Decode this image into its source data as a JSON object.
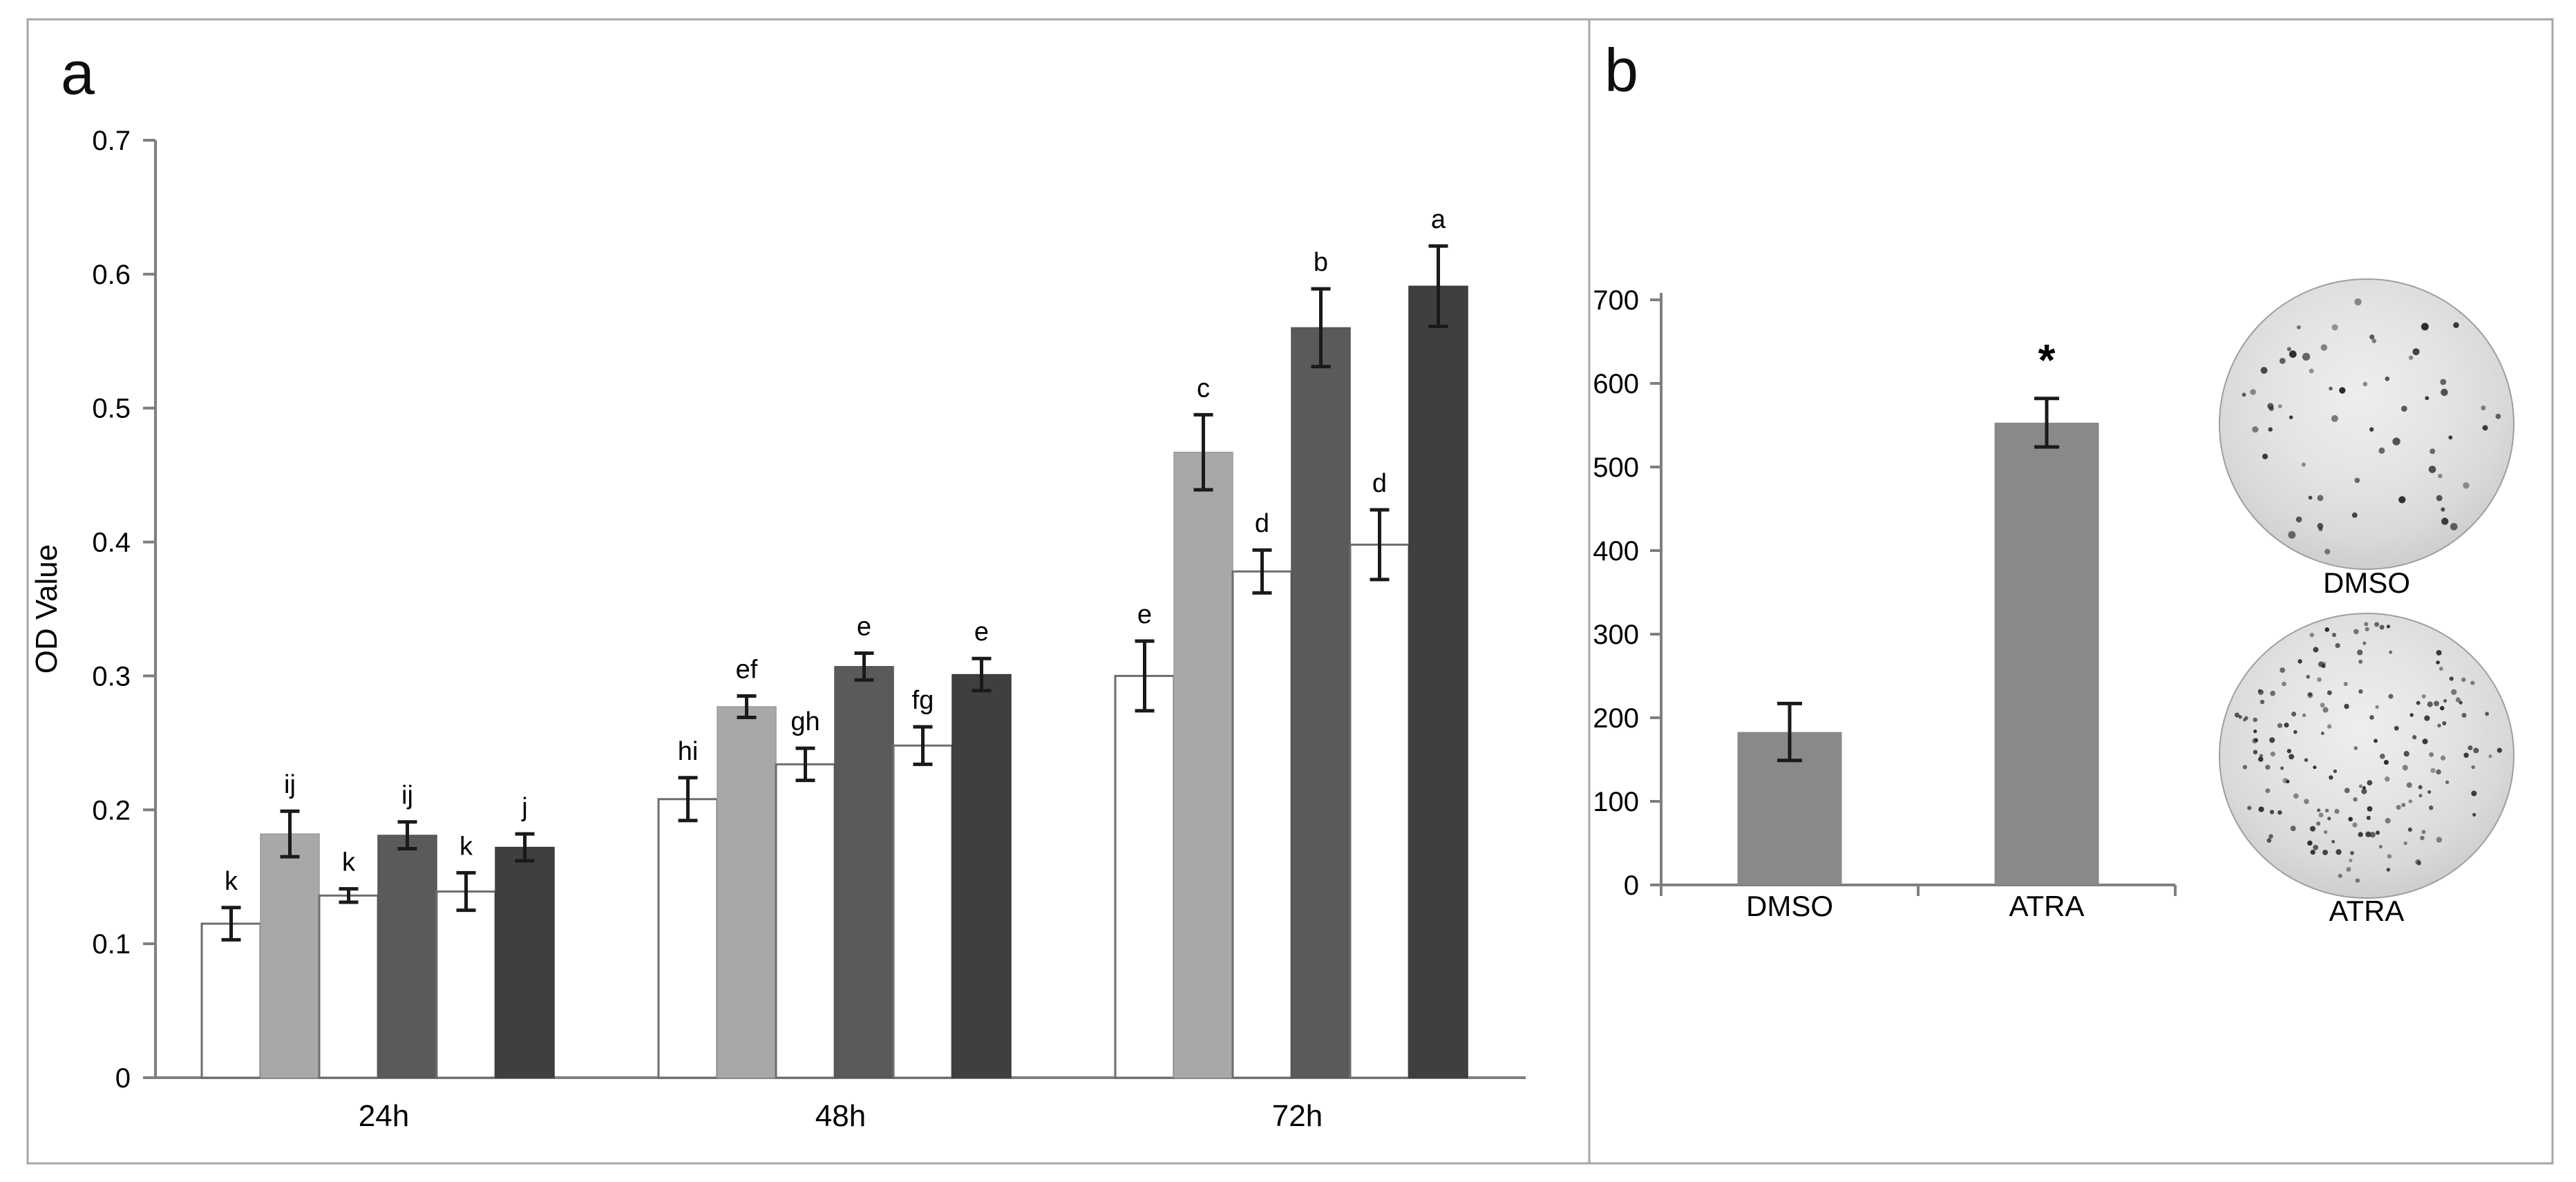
{
  "figure": {
    "panel_a_label": "a",
    "panel_b_label": "b",
    "background": "#ffffff",
    "border_color": "#a6a6a6",
    "axis_color": "#7f7f7f",
    "error_bar_color": "#1a1a1a",
    "text_color": "#000000"
  },
  "chart_data": [
    {
      "id": "panel-a-proliferation",
      "type": "bar",
      "title": "",
      "xlabel": "",
      "ylabel": "OD Value",
      "ylim": [
        0,
        0.7
      ],
      "yticks": [
        0,
        0.1,
        0.2,
        0.3,
        0.4,
        0.5,
        0.6,
        0.7
      ],
      "ytick_labels": [
        "0",
        "0.1",
        "0.2",
        "0.3",
        "0.4",
        "0.5",
        "0.6",
        "0.7"
      ],
      "categories": [
        "24h",
        "48h",
        "72h"
      ],
      "grid": false,
      "legend_position": "none",
      "series": [
        {
          "name": "series-1-white",
          "fill": "#ffffff",
          "stroke": "#6e6e6e",
          "values": [
            0.115,
            0.208,
            0.3
          ],
          "errors": [
            0.012,
            0.016,
            0.026
          ],
          "letters": [
            "k",
            "hi",
            "e"
          ]
        },
        {
          "name": "series-2-lightgray",
          "fill": "#a8a8a8",
          "stroke": "#9a9a9a",
          "values": [
            0.182,
            0.277,
            0.467
          ],
          "errors": [
            0.017,
            0.008,
            0.028
          ],
          "letters": [
            "ij",
            "ef",
            "c"
          ]
        },
        {
          "name": "series-3-white",
          "fill": "#ffffff",
          "stroke": "#6e6e6e",
          "values": [
            0.136,
            0.234,
            0.378
          ],
          "errors": [
            0.005,
            0.012,
            0.016
          ],
          "letters": [
            "k",
            "gh",
            "d"
          ]
        },
        {
          "name": "series-4-darkgray",
          "fill": "#5a5a5a",
          "stroke": "#525252",
          "values": [
            0.181,
            0.307,
            0.56
          ],
          "errors": [
            0.01,
            0.01,
            0.029
          ],
          "letters": [
            "ij",
            "e",
            "b"
          ]
        },
        {
          "name": "series-5-white",
          "fill": "#ffffff",
          "stroke": "#6e6e6e",
          "values": [
            0.139,
            0.248,
            0.398
          ],
          "errors": [
            0.014,
            0.014,
            0.026
          ],
          "letters": [
            "k",
            "fg",
            "d"
          ]
        },
        {
          "name": "series-6-charcoal",
          "fill": "#3f3f3f",
          "stroke": "#383838",
          "values": [
            0.172,
            0.301,
            0.591
          ],
          "errors": [
            0.01,
            0.012,
            0.03
          ],
          "letters": [
            "j",
            "e",
            "a"
          ]
        }
      ]
    },
    {
      "id": "panel-b-colony-count",
      "type": "bar",
      "title": "",
      "xlabel": "",
      "ylabel": "",
      "ylim": [
        0,
        700
      ],
      "yticks": [
        0,
        100,
        200,
        300,
        400,
        500,
        600,
        700
      ],
      "ytick_labels": [
        "0",
        "100",
        "200",
        "300",
        "400",
        "500",
        "600",
        "700"
      ],
      "categories": [
        "DMSO",
        "ATRA"
      ],
      "values": [
        183,
        553
      ],
      "errors": [
        34,
        29
      ],
      "annotations": [
        "",
        "*"
      ],
      "bar_color": "#898989",
      "grid": false,
      "legend_position": "none"
    }
  ],
  "well_images": [
    {
      "label": "DMSO",
      "colony_density": "sparse",
      "dot_count": 60,
      "dot_radius_range": [
        3,
        9
      ]
    },
    {
      "label": "ATRA",
      "colony_density": "dense",
      "dot_count": 175,
      "dot_radius_range": [
        2.5,
        6
      ]
    }
  ]
}
